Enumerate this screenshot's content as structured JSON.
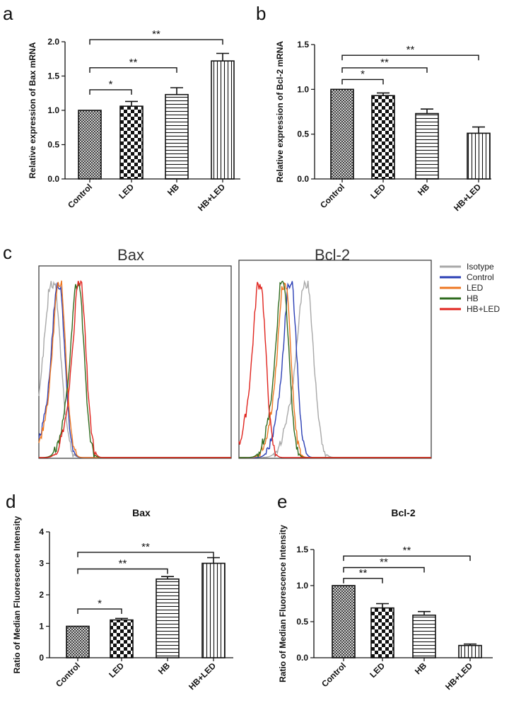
{
  "panels": {
    "a": "a",
    "b": "b",
    "c": "c",
    "d": "d",
    "e": "e"
  },
  "colors": {
    "isotype": "#a8a8a8",
    "control": "#2b3fb5",
    "led": "#ee7722",
    "hb": "#2e6b1e",
    "hbled": "#e0241e"
  },
  "chart_data": [
    {
      "id": "a",
      "type": "bar",
      "title": "",
      "ylabel": "Relative expression of Bax mRNA",
      "categories": [
        "Control",
        "LED",
        "HB",
        "HB+LED"
      ],
      "values": [
        1.0,
        1.06,
        1.23,
        1.72
      ],
      "errors": [
        0,
        0.07,
        0.1,
        0.11
      ],
      "patterns": [
        "crosshatch",
        "checker",
        "hlines",
        "vlines"
      ],
      "ylim": [
        0,
        2.0
      ],
      "yticks": [
        "0.0",
        "0.5",
        "1.0",
        "1.5",
        "2.0"
      ],
      "significance": [
        {
          "from": 0,
          "to": 1,
          "label": "*",
          "y": 1.3
        },
        {
          "from": 0,
          "to": 2,
          "label": "**",
          "y": 1.62
        },
        {
          "from": 0,
          "to": 3,
          "label": "**",
          "y": 2.03
        }
      ]
    },
    {
      "id": "b",
      "type": "bar",
      "title": "",
      "ylabel": "Relative expression of Bcl-2 mRNA",
      "categories": [
        "Control",
        "LED",
        "HB",
        "HB+LED"
      ],
      "values": [
        1.0,
        0.93,
        0.73,
        0.51
      ],
      "errors": [
        0,
        0.03,
        0.05,
        0.07
      ],
      "patterns": [
        "crosshatch",
        "checker",
        "hlines",
        "vlines"
      ],
      "ylim": [
        0,
        1.5
      ],
      "yticks": [
        "0.0",
        "0.5",
        "1.0",
        "1.5"
      ],
      "significance": [
        {
          "from": 0,
          "to": 1,
          "label": "*",
          "y": 1.11
        },
        {
          "from": 0,
          "to": 2,
          "label": "**",
          "y": 1.24
        },
        {
          "from": 0,
          "to": 3,
          "label": "**",
          "y": 1.38
        }
      ]
    },
    {
      "id": "d",
      "type": "bar",
      "title": "Bax",
      "ylabel": "Ratio of Median Fluorescence Intensity",
      "categories": [
        "Control",
        "LED",
        "HB",
        "HB+LED"
      ],
      "values": [
        1.0,
        1.2,
        2.5,
        3.0
      ],
      "errors": [
        0,
        0.05,
        0.08,
        0.18
      ],
      "patterns": [
        "crosshatch",
        "checker",
        "hlines",
        "vlines"
      ],
      "ylim": [
        0,
        4
      ],
      "yticks": [
        "0",
        "1",
        "2",
        "3",
        "4"
      ],
      "significance": [
        {
          "from": 0,
          "to": 1,
          "label": "*",
          "y": 1.55
        },
        {
          "from": 0,
          "to": 2,
          "label": "**",
          "y": 2.82
        },
        {
          "from": 0,
          "to": 3,
          "label": "**",
          "y": 3.35
        }
      ]
    },
    {
      "id": "e",
      "type": "bar",
      "title": "Bcl-2",
      "ylabel": "Ratio of Median Fluorescence Intensity",
      "categories": [
        "Control",
        "LED",
        "HB",
        "HB+LED"
      ],
      "values": [
        1.0,
        0.69,
        0.59,
        0.17
      ],
      "errors": [
        0,
        0.06,
        0.05,
        0.02
      ],
      "patterns": [
        "crosshatch",
        "checker",
        "hlines",
        "vlines"
      ],
      "ylim": [
        0,
        1.5
      ],
      "yticks": [
        "0.0",
        "0.5",
        "1.0",
        "1.5"
      ],
      "significance": [
        {
          "from": 0,
          "to": 1,
          "label": "**",
          "y": 1.1
        },
        {
          "from": 0,
          "to": 2,
          "label": "**",
          "y": 1.25
        },
        {
          "from": 0,
          "to": 3,
          "label": "**",
          "y": 1.41
        }
      ]
    }
  ],
  "histograms": {
    "titles": [
      "Bax",
      "Bcl-2"
    ],
    "legend": [
      "Isotype",
      "Control",
      "LED",
      "HB",
      "HB+LED"
    ],
    "series_keys": [
      "isotype",
      "control",
      "led",
      "hb",
      "hbled"
    ],
    "bax_peaks": [
      0.075,
      0.105,
      0.11,
      0.205,
      0.215
    ],
    "bcl2_peaks": [
      0.35,
      0.27,
      0.24,
      0.23,
      0.11
    ]
  }
}
